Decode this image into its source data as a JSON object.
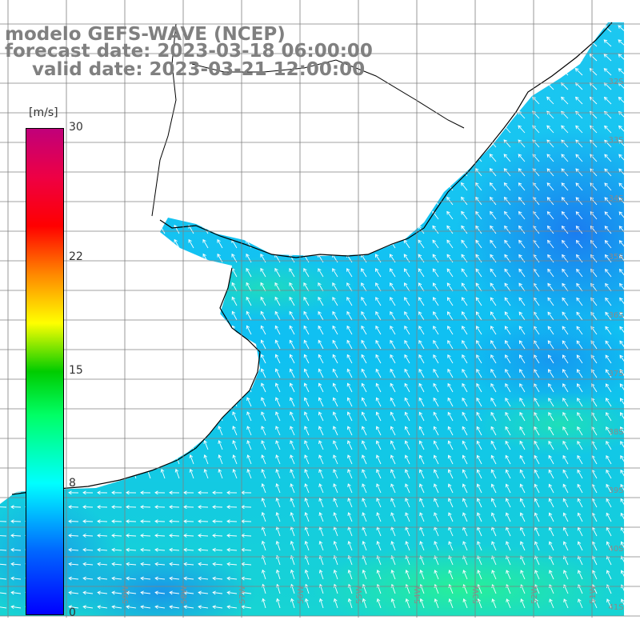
{
  "title": {
    "line1": "modelo GEFS-WAVE (NCEP)",
    "line2": "forecast date: 2023-03-18 06:00:00",
    "line3": "valid date: 2023-03-21 12:00:00"
  },
  "colorbar": {
    "unit": "[m/s]",
    "ticks": [
      {
        "label": "30",
        "value": 30
      },
      {
        "label": "22",
        "value": 22
      },
      {
        "label": "15",
        "value": 15
      },
      {
        "label": "8",
        "value": 8
      },
      {
        "label": "0",
        "value": 0
      }
    ],
    "min": 0,
    "max": 30,
    "gradient_colors": [
      "#0000ff",
      "#00ffff",
      "#00ff00",
      "#ffff00",
      "#ff0000",
      "#c0007a"
    ]
  },
  "grid": {
    "lat_labels": [
      "32S",
      "33S",
      "34S",
      "35S",
      "36S",
      "37S",
      "38S",
      "39S",
      "40S",
      "41S"
    ],
    "lon_labels": [
      "59W",
      "58W",
      "57W",
      "56W",
      "55W",
      "54W",
      "53W",
      "52W",
      "51W"
    ]
  },
  "colors": {
    "land": "#ffffff",
    "coast": "#000000",
    "grid": "#808080",
    "arrow": "#ffffff"
  }
}
